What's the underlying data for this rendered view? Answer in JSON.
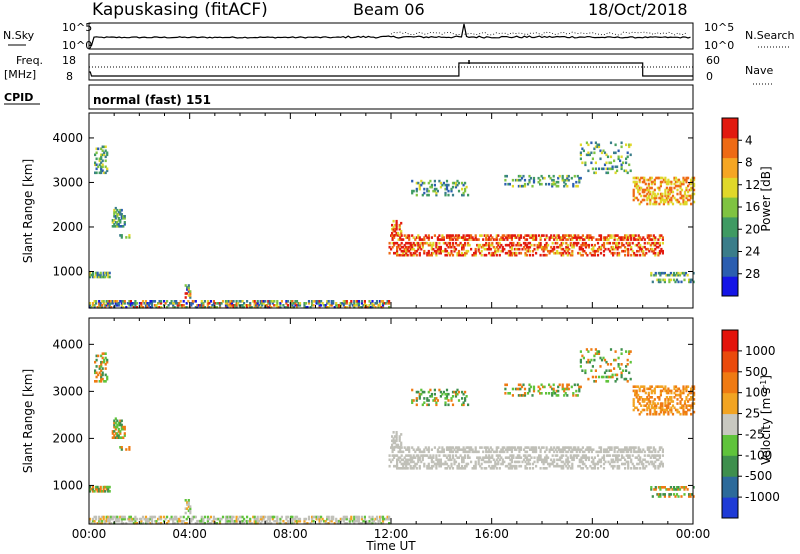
{
  "header": {
    "station": "Kapuskasing (fitACF)",
    "beam": "Beam 06",
    "date": "18/Oct/2018"
  },
  "strip_labels": {
    "nsky": "N.Sky",
    "nsearch": "N.Search",
    "freq_line1": "Freq.",
    "freq_line2": "[MHz]",
    "nave": "Nave",
    "cpid": "CPID",
    "cpid_value": "normal (fast) 151",
    "noise_ticks": [
      "10^5",
      "10^0"
    ],
    "freq_ticks": [
      "18",
      "8"
    ],
    "nave_ticks": [
      "60",
      "0"
    ]
  },
  "colors": {
    "noise_line": "#000000",
    "ground_scatter": "#c0c0b8"
  },
  "chart_data": [
    {
      "type": "heatmap",
      "name": "power",
      "xlabel": "Time UT",
      "ylabel": "Slant Range [km]",
      "x_ticks": [
        "00:00",
        "04:00",
        "08:00",
        "12:00",
        "16:00",
        "20:00",
        "00:00"
      ],
      "y_ticks": [
        "1000",
        "2000",
        "3000",
        "4000"
      ],
      "xlim": [
        0,
        24
      ],
      "ylim": [
        180,
        4560
      ],
      "colorbar": {
        "label": "Power [dB]",
        "ticks": [
          "4",
          "8",
          "12",
          "16",
          "20",
          "24",
          "28"
        ],
        "colors": [
          "#1515e6",
          "#2b5eb0",
          "#3a7d8a",
          "#3f9a63",
          "#7fc341",
          "#e0d82a",
          "#f5a623",
          "#ee6a14",
          "#e21a0f"
        ]
      }
    },
    {
      "type": "heatmap",
      "name": "velocity",
      "xlabel": "Time UT",
      "ylabel": "Slant Range [km]",
      "x_ticks": [
        "00:00",
        "04:00",
        "08:00",
        "12:00",
        "16:00",
        "20:00",
        "00:00"
      ],
      "y_ticks": [
        "1000",
        "2000",
        "3000",
        "4000"
      ],
      "xlim": [
        0,
        24
      ],
      "ylim": [
        180,
        4560
      ],
      "colorbar": {
        "label": "Velocity [m s^-1]",
        "ticks": [
          "1000",
          "500",
          "100",
          "25",
          "-25",
          "-100",
          "-500",
          "-1000"
        ],
        "colors": [
          "#1f3bd6",
          "#2c6a9a",
          "#3e8f4d",
          "#5fc33b",
          "#c8c8c0",
          "#f2a422",
          "#ef7a12",
          "#ea4a0c",
          "#e3130b"
        ]
      }
    }
  ],
  "time_axis": {
    "label": "Time UT"
  }
}
